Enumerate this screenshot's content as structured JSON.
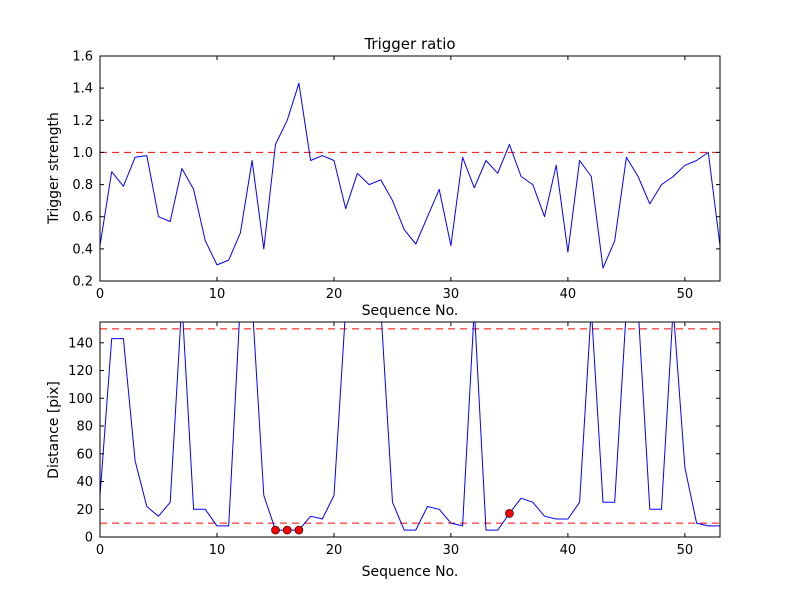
{
  "figure": {
    "background": "#ffffff",
    "line_color": "#0000ff",
    "threshold_color": "#ff0000",
    "marker_color": "#ff0000",
    "marker_edge": "#000000"
  },
  "chart_data": [
    {
      "type": "line",
      "title": "Trigger ratio",
      "xlabel": "Sequence No.",
      "ylabel": "Trigger strength",
      "xlim": [
        0,
        53
      ],
      "ylim": [
        0.2,
        1.6
      ],
      "xticks": [
        0,
        10,
        20,
        30,
        40,
        50
      ],
      "xticklabels": [
        "0",
        "10",
        "20",
        "30",
        "40",
        "50"
      ],
      "yticks": [
        0.2,
        0.4,
        0.6,
        0.8,
        1.0,
        1.2,
        1.4,
        1.6
      ],
      "yticklabels": [
        "0.2",
        "0.4",
        "0.6",
        "0.8",
        "1.0",
        "1.2",
        "1.4",
        "1.6"
      ],
      "grid": false,
      "legend": "none",
      "hlines": [
        {
          "y": 1.0,
          "color": "#ff0000",
          "style": "dashed"
        }
      ],
      "series": [
        {
          "name": "trigger-strength",
          "color": "#0000ff",
          "x": [
            0,
            1,
            2,
            3,
            4,
            5,
            6,
            7,
            8,
            9,
            10,
            11,
            12,
            13,
            14,
            15,
            16,
            17,
            18,
            19,
            20,
            21,
            22,
            23,
            24,
            25,
            26,
            27,
            28,
            29,
            30,
            31,
            32,
            33,
            34,
            35,
            36,
            37,
            38,
            39,
            40,
            41,
            42,
            43,
            44,
            45,
            46,
            47,
            48,
            49,
            50,
            51,
            52,
            53
          ],
          "y": [
            0.42,
            0.88,
            0.79,
            0.97,
            0.98,
            0.6,
            0.57,
            0.9,
            0.77,
            0.45,
            0.3,
            0.33,
            0.5,
            0.95,
            0.4,
            1.05,
            1.2,
            1.43,
            0.95,
            0.98,
            0.95,
            0.65,
            0.87,
            0.8,
            0.83,
            0.7,
            0.52,
            0.43,
            0.6,
            0.77,
            0.42,
            0.97,
            0.78,
            0.95,
            0.87,
            1.05,
            0.85,
            0.8,
            0.6,
            0.92,
            0.38,
            0.95,
            0.85,
            0.28,
            0.45,
            0.97,
            0.85,
            0.68,
            0.8,
            0.85,
            0.92,
            0.95,
            1.0,
            0.42
          ]
        }
      ],
      "markers": []
    },
    {
      "type": "line",
      "title": "",
      "xlabel": "Sequence No.",
      "ylabel": "Distance [pix]",
      "xlim": [
        0,
        53
      ],
      "ylim": [
        0,
        155
      ],
      "xticks": [
        0,
        10,
        20,
        30,
        40,
        50
      ],
      "xticklabels": [
        "0",
        "10",
        "20",
        "30",
        "40",
        "50"
      ],
      "yticks": [
        0,
        20,
        40,
        60,
        80,
        100,
        120,
        140
      ],
      "yticklabels": [
        "0",
        "20",
        "40",
        "60",
        "80",
        "100",
        "120",
        "140"
      ],
      "grid": false,
      "legend": "none",
      "hlines": [
        {
          "y": 150,
          "color": "#ff0000",
          "style": "dashed"
        },
        {
          "y": 10,
          "color": "#ff0000",
          "style": "dashed"
        }
      ],
      "series": [
        {
          "name": "distance",
          "color": "#0000ff",
          "x": [
            0,
            1,
            2,
            3,
            4,
            5,
            6,
            7,
            8,
            9,
            10,
            11,
            12,
            13,
            14,
            15,
            16,
            17,
            18,
            19,
            20,
            21,
            22,
            23,
            24,
            25,
            26,
            27,
            28,
            29,
            30,
            31,
            32,
            33,
            34,
            35,
            36,
            37,
            38,
            39,
            40,
            41,
            42,
            43,
            44,
            45,
            46,
            47,
            48,
            49,
            50,
            51,
            52,
            53
          ],
          "y": [
            30,
            143,
            143,
            55,
            22,
            15,
            25,
            170,
            20,
            20,
            8,
            8,
            170,
            170,
            30,
            5,
            5,
            5,
            15,
            13,
            30,
            165,
            165,
            165,
            165,
            25,
            5,
            5,
            22,
            20,
            10,
            8,
            165,
            5,
            5,
            17,
            28,
            25,
            15,
            13,
            13,
            25,
            165,
            25,
            25,
            165,
            165,
            20,
            20,
            165,
            50,
            10,
            8,
            8
          ]
        }
      ],
      "markers": [
        {
          "x": 15,
          "y": 5
        },
        {
          "x": 16,
          "y": 5
        },
        {
          "x": 17,
          "y": 5
        },
        {
          "x": 35,
          "y": 17
        }
      ]
    }
  ]
}
